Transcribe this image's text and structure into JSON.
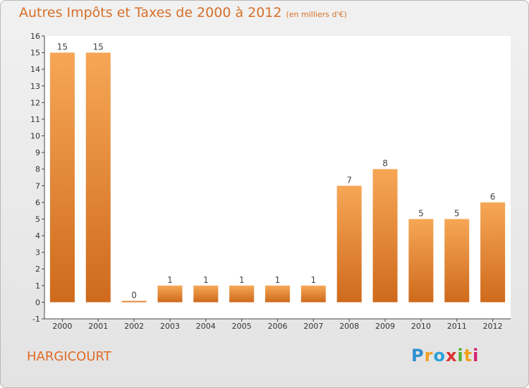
{
  "title": "Autres Impôts et Taxes de 2000 à 2012",
  "subtitle": "(en milliers d'€)",
  "city": "HARGICOURT",
  "logo": {
    "letters": [
      "P",
      "r",
      "o",
      "x",
      "i",
      "t",
      "i"
    ],
    "colors": [
      "#2e8fd0",
      "#f0a020",
      "#2aa0d8",
      "#e03030",
      "#50b030",
      "#f0a020",
      "#d02070"
    ]
  },
  "colors": {
    "bar_top": "#f6a756",
    "bar_bottom": "#cf6a1c",
    "accent": "#d76f28"
  },
  "chart_data": {
    "type": "bar",
    "categories": [
      "2000",
      "2001",
      "2002",
      "2003",
      "2004",
      "2005",
      "2006",
      "2007",
      "2008",
      "2009",
      "2010",
      "2011",
      "2012"
    ],
    "values": [
      15,
      15,
      0,
      1,
      1,
      1,
      1,
      1,
      7,
      8,
      5,
      5,
      6
    ],
    "title": "Autres Impôts et Taxes de 2000 à 2012",
    "ylim": [
      -1,
      16
    ],
    "yticks": [
      "-1",
      "0",
      "1",
      "2",
      "3",
      "4",
      "5",
      "6",
      "7",
      "8",
      "9",
      "10",
      "11",
      "12",
      "13",
      "14",
      "15",
      "16"
    ],
    "grid": false,
    "legend": "none"
  }
}
